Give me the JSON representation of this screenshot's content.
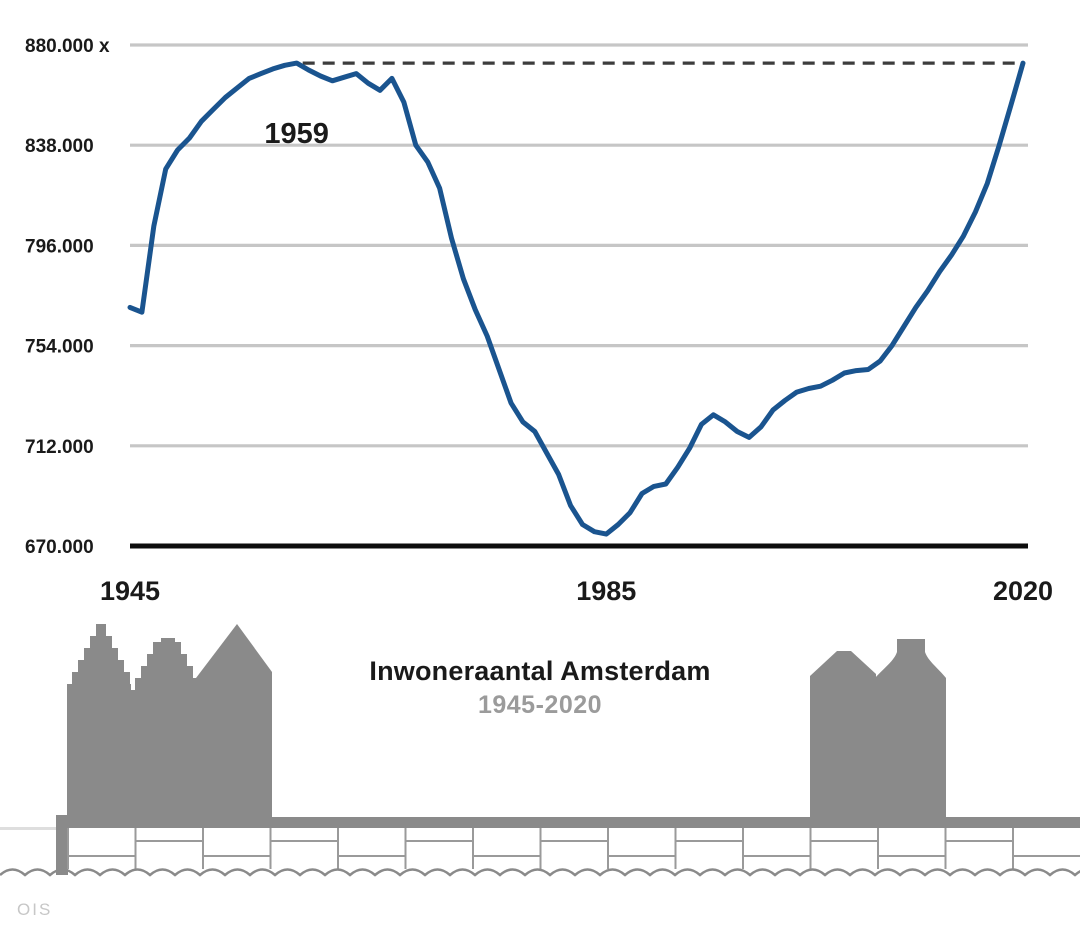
{
  "page": {
    "title": "Inwoneraantal Amsterdam",
    "subtitle": "1945-2020",
    "source_label": "OIS"
  },
  "colors": {
    "line": "#1a548f",
    "gridline": "#c6c6c6",
    "axis": "#0d0d0d",
    "dashed_reference": "#3c3c3c",
    "tick_text": "#1a1a1a",
    "illustration_gray": "#8a8a8a",
    "brick_outline": "#9a9a9a",
    "subtitle_gray": "#9b9b9b",
    "source_gray": "#c7c7c7"
  },
  "chart_data": {
    "type": "line",
    "title": "Inwoneraantal Amsterdam",
    "subtitle": "1945-2020",
    "xlim": [
      1945,
      2020
    ],
    "ylim": [
      670000,
      880000
    ],
    "grid": "horizontal-only",
    "legend": "none",
    "y_ticks": [
      {
        "value": 880000,
        "label": "880.000 x"
      },
      {
        "value": 838000,
        "label": "838.000"
      },
      {
        "value": 796000,
        "label": "796.000"
      },
      {
        "value": 754000,
        "label": "754.000"
      },
      {
        "value": 712000,
        "label": "712.000"
      },
      {
        "value": 670000,
        "label": "670.000"
      }
    ],
    "x_ticks": [
      {
        "year": 1945,
        "label": "1945"
      },
      {
        "year": 1985,
        "label": "1985"
      },
      {
        "year": 2020,
        "label": "2020"
      }
    ],
    "annotations": [
      {
        "text": "1959",
        "year": 1959,
        "value": 872400
      }
    ],
    "reference_line": {
      "style": "dashed",
      "value": 872400,
      "from_year": 1959,
      "to_year": 2020
    },
    "x": [
      1945,
      1946,
      1947,
      1948,
      1949,
      1950,
      1951,
      1952,
      1953,
      1954,
      1955,
      1956,
      1957,
      1958,
      1959,
      1960,
      1961,
      1962,
      1963,
      1964,
      1965,
      1966,
      1967,
      1968,
      1969,
      1970,
      1971,
      1972,
      1973,
      1974,
      1975,
      1976,
      1977,
      1978,
      1979,
      1980,
      1981,
      1982,
      1983,
      1984,
      1985,
      1986,
      1987,
      1988,
      1989,
      1990,
      1991,
      1992,
      1993,
      1994,
      1995,
      1996,
      1997,
      1998,
      1999,
      2000,
      2001,
      2002,
      2003,
      2004,
      2005,
      2006,
      2007,
      2008,
      2009,
      2010,
      2011,
      2012,
      2013,
      2014,
      2015,
      2016,
      2017,
      2018,
      2019,
      2020
    ],
    "series": [
      {
        "name": "Inwoneraantal Amsterdam",
        "values": [
          770000,
          768000,
          804000,
          828000,
          836000,
          841000,
          848000,
          853000,
          858000,
          862000,
          866000,
          868000,
          870000,
          871500,
          872400,
          869500,
          867000,
          865000,
          866500,
          868000,
          864000,
          861000,
          866000,
          856000,
          838000,
          831000,
          820000,
          799000,
          782000,
          769000,
          758000,
          744000,
          730000,
          722000,
          718000,
          709000,
          700000,
          687000,
          679000,
          676000,
          675000,
          679000,
          684000,
          692000,
          695000,
          696000,
          703000,
          711000,
          721000,
          725000,
          722000,
          718000,
          715500,
          720000,
          727000,
          731000,
          734500,
          736000,
          737000,
          739500,
          742500,
          743500,
          744000,
          747500,
          754000,
          762000,
          770000,
          777000,
          785000,
          792000,
          800000,
          810000,
          822000,
          838000,
          855000,
          872400
        ]
      }
    ]
  }
}
